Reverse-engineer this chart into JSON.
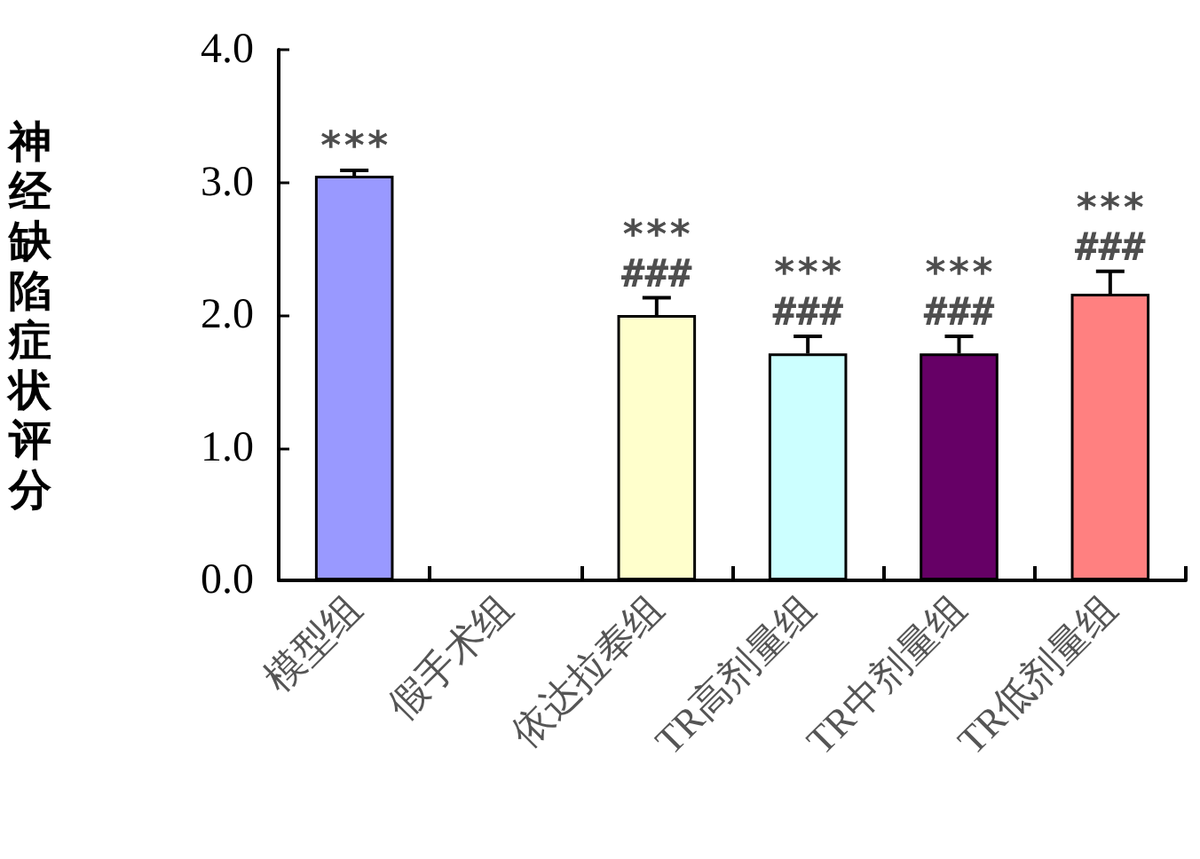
{
  "chart_data": {
    "type": "bar",
    "ylabel": "神经缺陷症状评分",
    "categories": [
      "模型组",
      "假手术组",
      "依达拉奉组",
      "TR高剂量组",
      "TR中剂量组",
      "TR低剂量组"
    ],
    "values": [
      3.05,
      null,
      2.0,
      1.71,
      1.71,
      2.16
    ],
    "colors": [
      "#9999ff",
      null,
      "#ffffcc",
      "#ccffff",
      "#660066",
      "#ff8080"
    ],
    "errors": [
      [
        3.05,
        3.09
      ],
      null,
      [
        2.0,
        2.13
      ],
      [
        1.71,
        1.84
      ],
      [
        1.71,
        1.84
      ],
      [
        2.16,
        2.33
      ]
    ],
    "ylim": [
      0,
      4
    ],
    "yticks": [
      {
        "value": 0,
        "label": "0.0"
      },
      {
        "value": 1,
        "label": "1.0"
      },
      {
        "value": 2,
        "label": "2.0"
      },
      {
        "value": 3,
        "label": "3.0"
      },
      {
        "value": 4,
        "label": "4.0"
      }
    ],
    "grid": false,
    "annotations": [
      {
        "text": "***",
        "x": "模型组",
        "y": 3.05
      },
      {
        "text": "***",
        "x": "依达拉奉组",
        "y": 2.0
      },
      {
        "text": "###",
        "x": "依达拉奉组",
        "y": 2.0
      },
      {
        "text": "***",
        "x": "TR高剂量组",
        "y": 1.71
      },
      {
        "text": "###",
        "x": "TR高剂量组",
        "y": 1.71
      },
      {
        "text": "***",
        "x": "TR中剂量组",
        "y": 1.71
      },
      {
        "text": "###",
        "x": "TR中剂量组",
        "y": 1.71
      },
      {
        "text": "***",
        "x": "TR低剂量组",
        "y": 2.16
      },
      {
        "text": "###",
        "x": "TR低剂量组",
        "y": 2.16
      }
    ]
  }
}
